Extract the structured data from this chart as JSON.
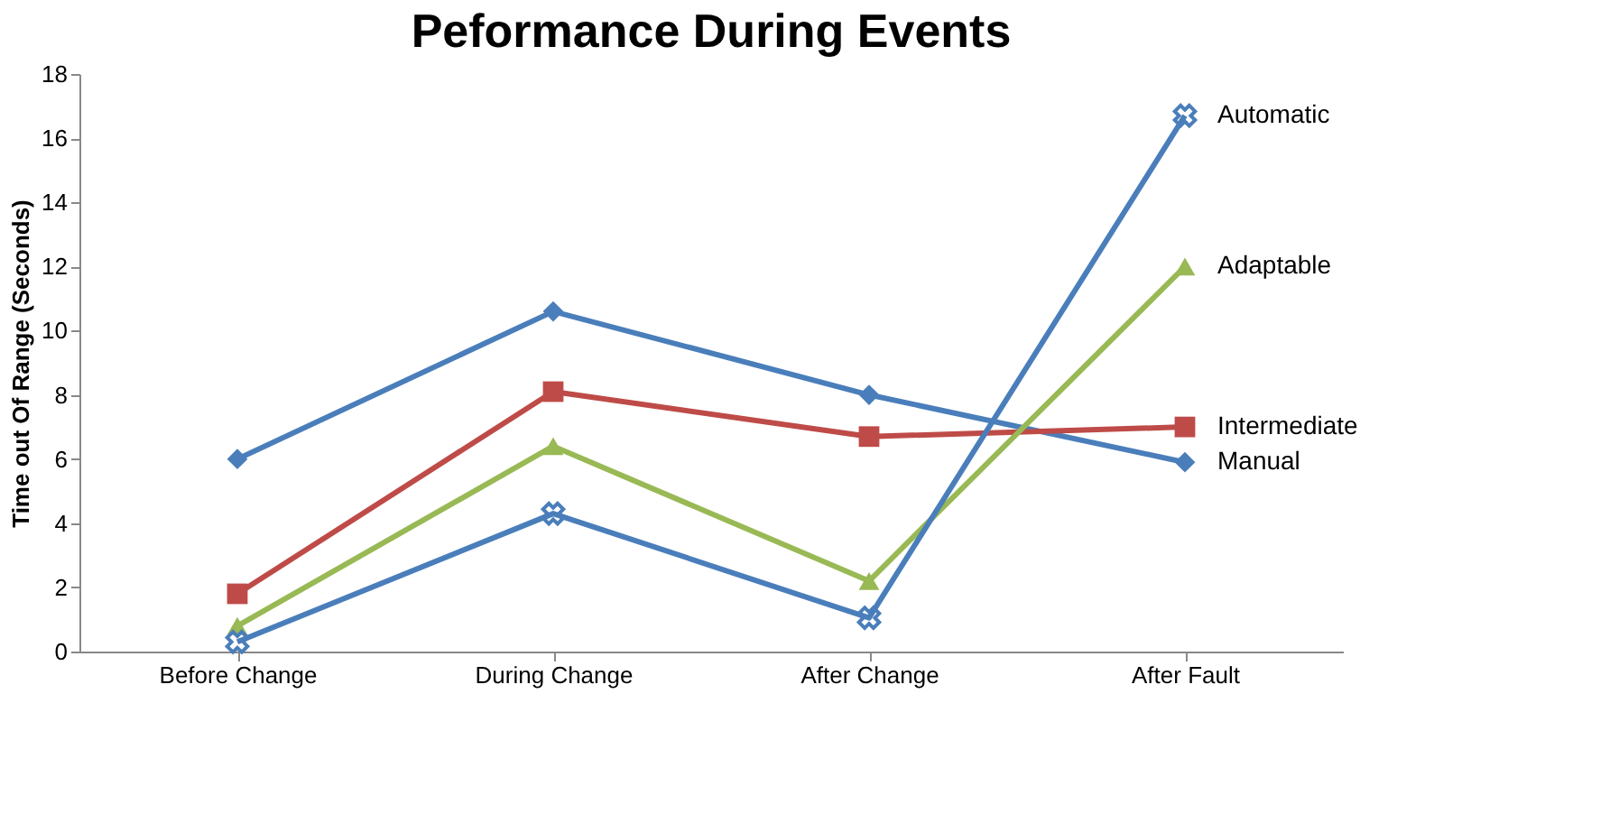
{
  "chart_data": {
    "type": "line",
    "title": "Peformance During Events",
    "ylabel": "Time out Of Range (Seconds)",
    "categories": [
      "Before Change",
      "During Change",
      "After Change",
      "After Fault"
    ],
    "series": [
      {
        "name": "Manual",
        "color": "#4a7ebb",
        "marker": "diamond",
        "values": [
          6.0,
          10.6,
          8.0,
          5.9
        ]
      },
      {
        "name": "Intermediate",
        "color": "#be4b48",
        "marker": "square",
        "values": [
          1.8,
          8.1,
          6.7,
          7.0
        ]
      },
      {
        "name": "Adaptable",
        "color": "#98b954",
        "marker": "triangle",
        "values": [
          0.8,
          6.4,
          2.2,
          12.0
        ]
      },
      {
        "name": "Automatic",
        "color": "#4a7ebb",
        "marker": "cross",
        "values": [
          0.3,
          4.3,
          1.05,
          16.7
        ]
      }
    ],
    "ylim": [
      0,
      18
    ],
    "yticks": [
      0,
      2,
      4,
      6,
      8,
      10,
      12,
      14,
      16,
      18
    ],
    "grid": false,
    "legend": false,
    "line_style": "solid"
  }
}
